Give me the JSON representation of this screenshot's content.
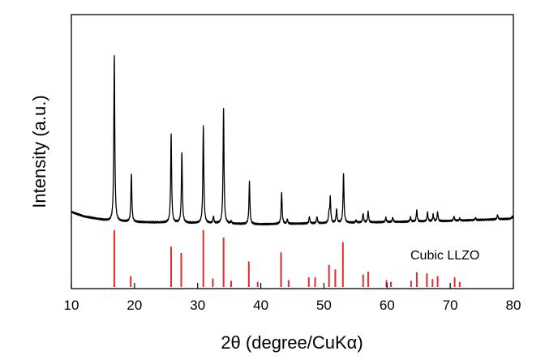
{
  "chart_data": {
    "type": "line",
    "title": "",
    "xlabel": "2θ (degree/CuKα)",
    "ylabel": "Intensity (a.u.)",
    "xlim": [
      10,
      80
    ],
    "xticks": [
      10,
      20,
      30,
      40,
      50,
      60,
      70,
      80
    ],
    "y_units": "arbitrary (no tick labels)",
    "grid": false,
    "series": [
      {
        "name": "",
        "style": "black line",
        "color": "#000000",
        "baseline": [
          [
            10,
            0.02
          ],
          [
            12,
            0.0
          ],
          [
            14,
            -0.01
          ],
          [
            16,
            -0.02
          ],
          [
            20,
            -0.025
          ],
          [
            30,
            -0.03
          ],
          [
            40,
            -0.035
          ],
          [
            50,
            -0.03
          ],
          [
            60,
            -0.025
          ],
          [
            70,
            -0.02
          ],
          [
            80,
            -0.01
          ]
        ],
        "peaks": [
          {
            "x": 16.8,
            "height": 0.73
          },
          {
            "x": 19.5,
            "height": 0.21
          },
          {
            "x": 25.8,
            "height": 0.39
          },
          {
            "x": 27.5,
            "height": 0.31
          },
          {
            "x": 30.9,
            "height": 0.43
          },
          {
            "x": 32.5,
            "height": 0.03
          },
          {
            "x": 34.1,
            "height": 0.51
          },
          {
            "x": 35.3,
            "height": 0.01
          },
          {
            "x": 38.2,
            "height": 0.19
          },
          {
            "x": 43.3,
            "height": 0.14
          },
          {
            "x": 44.2,
            "height": 0.02
          },
          {
            "x": 47.7,
            "height": 0.03
          },
          {
            "x": 48.9,
            "height": 0.03
          },
          {
            "x": 50.8,
            "height": 0.04
          },
          {
            "x": 51.0,
            "height": 0.11
          },
          {
            "x": 52.0,
            "height": 0.06
          },
          {
            "x": 53.1,
            "height": 0.22
          },
          {
            "x": 55.1,
            "height": 0.01
          },
          {
            "x": 56.2,
            "height": 0.04
          },
          {
            "x": 57.0,
            "height": 0.05
          },
          {
            "x": 59.8,
            "height": 0.02
          },
          {
            "x": 60.9,
            "height": 0.02
          },
          {
            "x": 63.7,
            "height": 0.02
          },
          {
            "x": 64.7,
            "height": 0.05
          },
          {
            "x": 66.4,
            "height": 0.04
          },
          {
            "x": 67.3,
            "height": 0.03
          },
          {
            "x": 68.0,
            "height": 0.04
          },
          {
            "x": 70.6,
            "height": 0.02
          },
          {
            "x": 71.5,
            "height": 0.01
          },
          {
            "x": 74.0,
            "height": 0.01
          },
          {
            "x": 77.5,
            "height": 0.02
          },
          {
            "x": 79.8,
            "height": 0.01
          }
        ]
      },
      {
        "name": "Cubic LLZO",
        "style": "red stick pattern",
        "color": "#e8272a",
        "sticks": [
          {
            "x": 16.8,
            "height": 1.0
          },
          {
            "x": 19.4,
            "height": 0.19
          },
          {
            "x": 25.8,
            "height": 0.71
          },
          {
            "x": 27.4,
            "height": 0.6
          },
          {
            "x": 30.9,
            "height": 1.0
          },
          {
            "x": 32.4,
            "height": 0.15
          },
          {
            "x": 34.1,
            "height": 0.87
          },
          {
            "x": 35.3,
            "height": 0.11
          },
          {
            "x": 38.1,
            "height": 0.45
          },
          {
            "x": 39.5,
            "height": 0.09
          },
          {
            "x": 43.2,
            "height": 0.61
          },
          {
            "x": 44.4,
            "height": 0.12
          },
          {
            "x": 47.6,
            "height": 0.17
          },
          {
            "x": 48.6,
            "height": 0.17
          },
          {
            "x": 50.8,
            "height": 0.39
          },
          {
            "x": 51.8,
            "height": 0.31
          },
          {
            "x": 53.0,
            "height": 0.79
          },
          {
            "x": 56.2,
            "height": 0.22
          },
          {
            "x": 57.0,
            "height": 0.27
          },
          {
            "x": 59.9,
            "height": 0.12
          },
          {
            "x": 60.6,
            "height": 0.09
          },
          {
            "x": 63.8,
            "height": 0.11
          },
          {
            "x": 64.7,
            "height": 0.26
          },
          {
            "x": 66.3,
            "height": 0.24
          },
          {
            "x": 67.2,
            "height": 0.14
          },
          {
            "x": 68.0,
            "height": 0.19
          },
          {
            "x": 70.7,
            "height": 0.17
          },
          {
            "x": 71.5,
            "height": 0.09
          }
        ]
      }
    ]
  }
}
